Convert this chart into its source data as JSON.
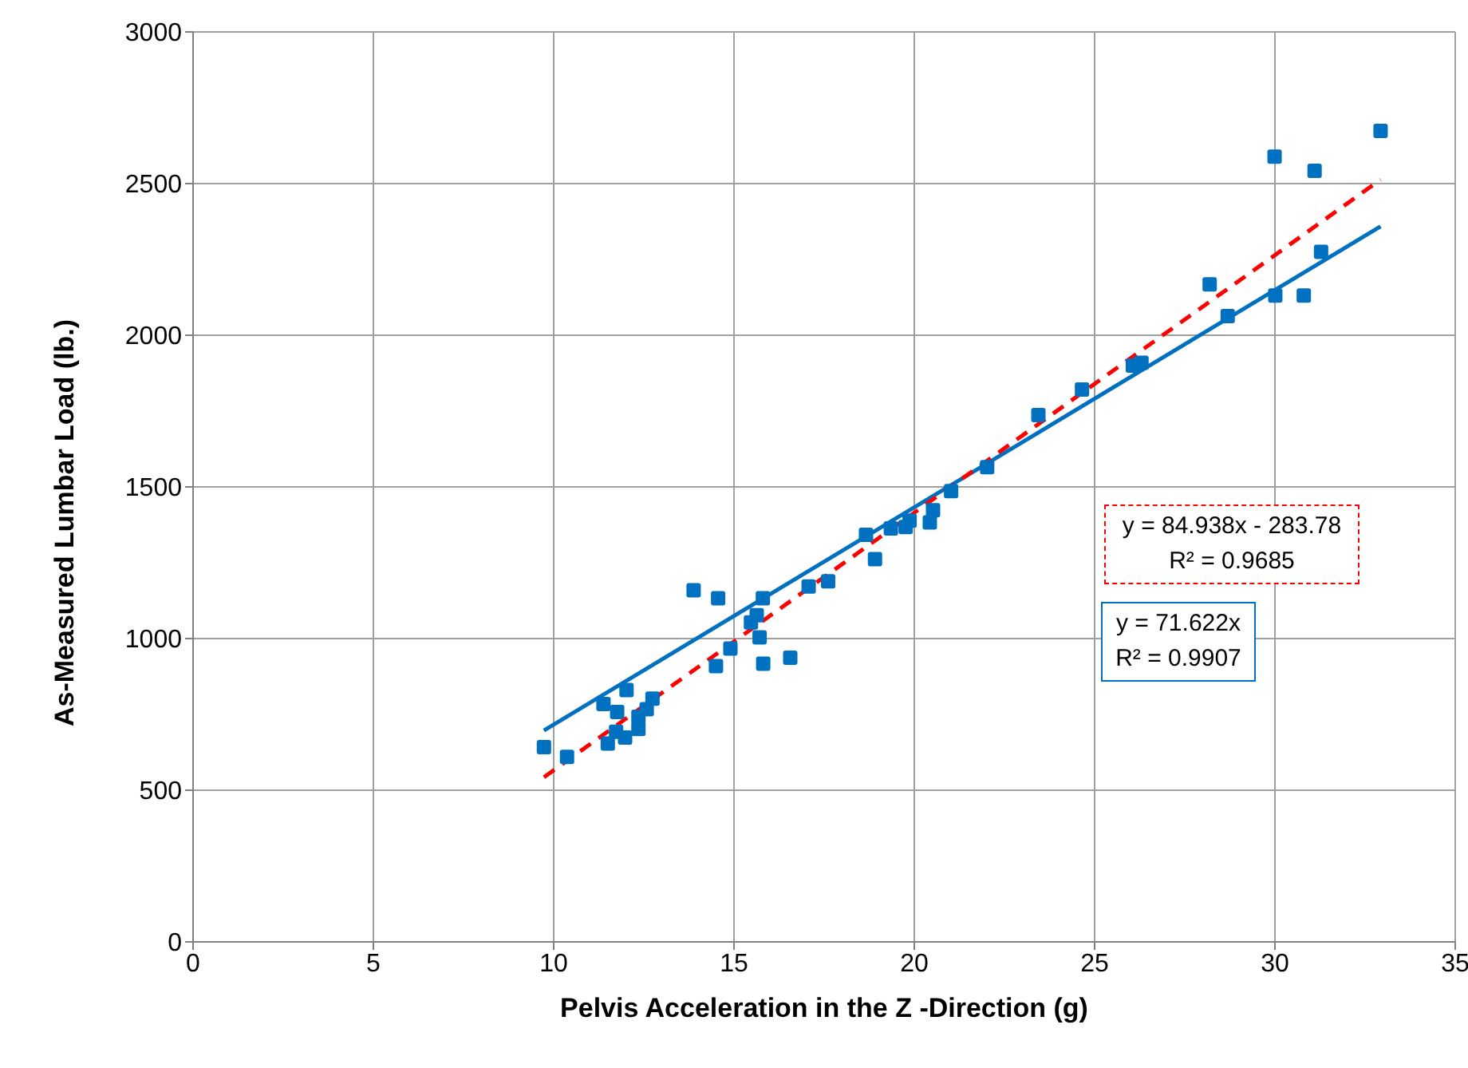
{
  "chart_data": {
    "type": "scatter",
    "xlabel": "Pelvis Acceleration in the Z -Direction (g)",
    "ylabel": "As-Measured Lumbar Load (lb.)",
    "xlim": [
      0,
      35
    ],
    "xticks": [
      0,
      5,
      10,
      15,
      20,
      25,
      30,
      35
    ],
    "ylim": [
      0,
      3000
    ],
    "yticks": [
      0,
      500,
      1000,
      1500,
      2000,
      2500,
      3000
    ],
    "grid": true,
    "series": [
      {
        "marker": "square",
        "color": "#0070c0",
        "x": [
          9.73,
          10.37,
          11.38,
          11.76,
          12.02,
          11.5,
          11.73,
          11.98,
          12.35,
          12.35,
          12.58,
          12.74,
          13.88,
          14.56,
          14.5,
          14.9,
          15.8,
          15.63,
          15.47,
          15.71,
          15.81,
          16.56,
          17.07,
          17.61,
          18.66,
          18.91,
          19.35,
          19.76,
          19.87,
          20.43,
          20.52,
          21.02,
          22.02,
          23.44,
          24.65,
          26.06,
          26.3,
          28.19,
          28.69,
          29.99,
          30.01,
          30.8,
          31.1,
          31.28,
          32.93
        ],
        "values": [
          642,
          610,
          784,
          758,
          830,
          654,
          693,
          674,
          702,
          742,
          767,
          802,
          1159,
          1133,
          909,
          967,
          1133,
          1077,
          1053,
          1004,
          917,
          937,
          1172,
          1189,
          1342,
          1262,
          1363,
          1368,
          1389,
          1383,
          1423,
          1486,
          1565,
          1737,
          1821,
          1900,
          1909,
          2168,
          2063,
          2589,
          2131,
          2131,
          2542,
          2275,
          2674
        ]
      },
      {
        "type": "line",
        "color": "#0070c0",
        "line_style": "solid",
        "x": [
          9.73,
          32.93
        ],
        "values": [
          697,
          2359
        ]
      },
      {
        "type": "line",
        "color": "#ff0000",
        "line_style": "dashed",
        "x": [
          9.73,
          32.93
        ],
        "values": [
          543,
          2513
        ]
      }
    ],
    "annotations": [
      "y = 84.938x - 283.78\nR² = 0.9685",
      "y = 71.622x\nR² = 0.9907"
    ]
  }
}
